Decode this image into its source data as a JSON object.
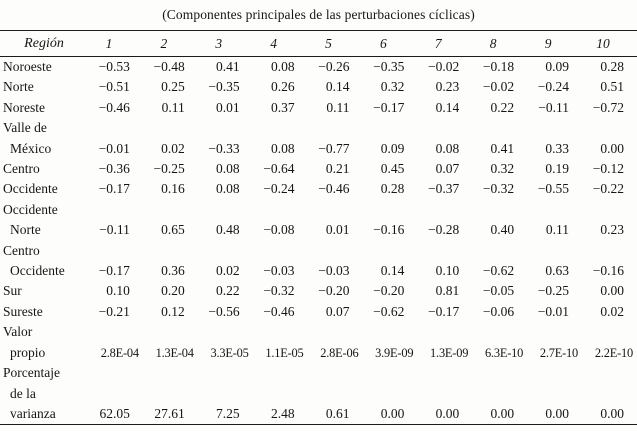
{
  "title": "(Componentes principales de las perturbaciones cíclicas)",
  "table": {
    "region_header": "Región",
    "columns": [
      "1",
      "2",
      "3",
      "4",
      "5",
      "6",
      "7",
      "8",
      "9",
      "10"
    ],
    "rows": [
      {
        "label_lines": [
          "Noroeste"
        ],
        "values": [
          "−0.53",
          "−0.48",
          "0.41",
          "0.08",
          "−0.26",
          "−0.35",
          "−0.02",
          "−0.18",
          "0.09",
          "0.28"
        ]
      },
      {
        "label_lines": [
          "Norte"
        ],
        "values": [
          "−0.51",
          "0.25",
          "−0.35",
          "0.26",
          "0.14",
          "0.32",
          "0.23",
          "−0.02",
          "−0.24",
          "0.51"
        ]
      },
      {
        "label_lines": [
          "Noreste"
        ],
        "values": [
          "−0.46",
          "0.11",
          "0.01",
          "0.37",
          "0.11",
          "−0.17",
          "0.14",
          "0.22",
          "−0.11",
          "−0.72"
        ]
      },
      {
        "label_lines": [
          "Valle de",
          "México"
        ],
        "values": [
          "−0.01",
          "0.02",
          "−0.33",
          "0.08",
          "−0.77",
          "0.09",
          "0.08",
          "0.41",
          "0.33",
          "0.00"
        ]
      },
      {
        "label_lines": [
          "Centro"
        ],
        "values": [
          "−0.36",
          "−0.25",
          "0.08",
          "−0.64",
          "0.21",
          "0.45",
          "0.07",
          "0.32",
          "0.19",
          "−0.12"
        ]
      },
      {
        "label_lines": [
          "Occidente"
        ],
        "values": [
          "−0.17",
          "0.16",
          "0.08",
          "−0.24",
          "−0.46",
          "0.28",
          "−0.37",
          "−0.32",
          "−0.55",
          "−0.22"
        ]
      },
      {
        "label_lines": [
          "Occidente",
          "Norte"
        ],
        "values": [
          "−0.11",
          "0.65",
          "0.48",
          "−0.08",
          "0.01",
          "−0.16",
          "−0.28",
          "0.40",
          "0.11",
          "0.23"
        ]
      },
      {
        "label_lines": [
          "Centro",
          "Occidente"
        ],
        "values": [
          "−0.17",
          "0.36",
          "0.02",
          "−0.03",
          "−0.03",
          "0.14",
          "0.10",
          "−0.62",
          "0.63",
          "−0.16"
        ]
      },
      {
        "label_lines": [
          "Sur"
        ],
        "values": [
          "0.10",
          "0.20",
          "0.22",
          "−0.32",
          "−0.20",
          "−0.20",
          "0.81",
          "−0.05",
          "−0.25",
          "0.00"
        ]
      },
      {
        "label_lines": [
          "Sureste"
        ],
        "values": [
          "−0.21",
          "0.12",
          "−0.56",
          "−0.46",
          "0.07",
          "−0.62",
          "−0.17",
          "−0.06",
          "−0.01",
          "0.02"
        ]
      },
      {
        "label_lines": [
          "Valor",
          "propio"
        ],
        "values": [
          "2.8E-04",
          "1.3E-04",
          "3.3E-05",
          "1.1E-05",
          "2.8E-06",
          "3.9E-09",
          "1.3E-09",
          "6.3E-10",
          "2.7E-10",
          "2.2E-10"
        ]
      },
      {
        "label_lines": [
          "Porcentaje",
          "de la",
          "varianza"
        ],
        "values": [
          "62.05",
          "27.61",
          "7.25",
          "2.48",
          "0.61",
          "0.00",
          "0.00",
          "0.00",
          "0.00",
          "0.00"
        ]
      }
    ]
  }
}
